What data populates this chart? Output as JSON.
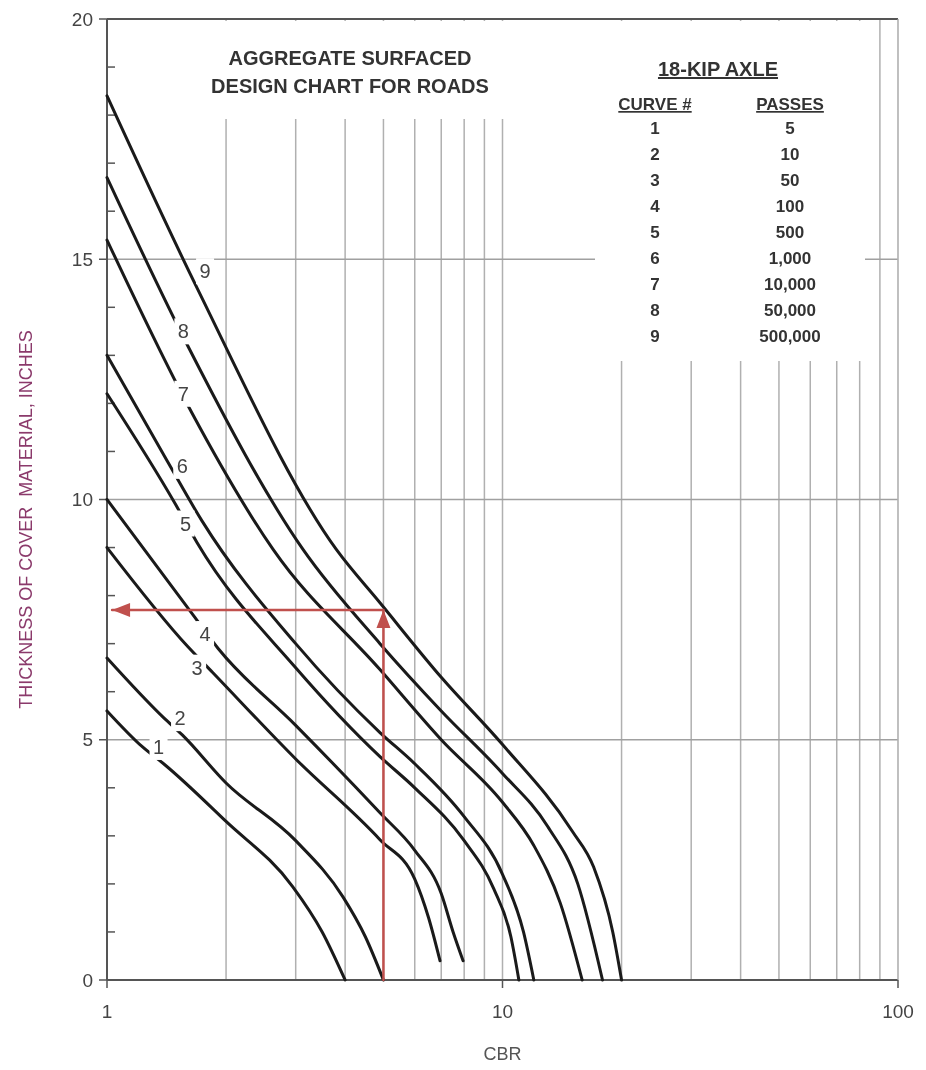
{
  "chart_data": {
    "type": "line",
    "title": "AGGREGATE SURFACED\nDESIGN CHART FOR ROADS",
    "xlabel": "CBR",
    "ylabel": "THICKNESS OF COVER  MATERIAL, INCHES",
    "log": "x",
    "grid": true,
    "marker": "none",
    "line_style": "solid",
    "xlim": [
      1,
      100
    ],
    "ylim": [
      0,
      20
    ],
    "xticks": [
      1,
      {
        "value": 2,
        "label": null
      },
      {
        "value": 3,
        "label": null
      },
      {
        "value": 4,
        "label": null
      },
      {
        "value": 5,
        "label": null
      },
      {
        "value": 6,
        "label": null
      },
      {
        "value": 7,
        "label": null
      },
      {
        "value": 8,
        "label": null
      },
      {
        "value": 9,
        "label": null
      },
      10,
      {
        "value": 20,
        "label": null
      },
      {
        "value": 30,
        "label": null
      },
      {
        "value": 40,
        "label": null
      },
      {
        "value": 50,
        "label": null
      },
      {
        "value": 60,
        "label": null
      },
      {
        "value": 70,
        "label": null
      },
      {
        "value": 80,
        "label": null
      },
      {
        "value": 90,
        "label": null
      },
      100
    ],
    "yticks": [
      0,
      {
        "value": 1,
        "label": null
      },
      {
        "value": 2,
        "label": null
      },
      {
        "value": 3,
        "label": null
      },
      {
        "value": 4,
        "label": null
      },
      5,
      {
        "value": 6,
        "label": null
      },
      {
        "value": 7,
        "label": null
      },
      {
        "value": 8,
        "label": null
      },
      {
        "value": 9,
        "label": null
      },
      10,
      {
        "value": 11,
        "label": null
      },
      {
        "value": 12,
        "label": null
      },
      {
        "value": 13,
        "label": null
      },
      {
        "value": 14,
        "label": null
      },
      15,
      {
        "value": 16,
        "label": null
      },
      {
        "value": 17,
        "label": null
      },
      {
        "value": 18,
        "label": null
      },
      {
        "value": 19,
        "label": null
      },
      20
    ],
    "series": [
      {
        "color": "#1a1a1a",
        "x": [
          1,
          1.23,
          1.4,
          2,
          2.95,
          3.5,
          4
        ],
        "values": [
          5.6,
          4.85,
          4.48,
          3.3,
          1.94,
          1.0,
          0
        ]
      },
      {
        "color": "#1a1a1a",
        "x": [
          1,
          1.39,
          1.55,
          2,
          3,
          3.95,
          4.5,
          5
        ],
        "values": [
          6.7,
          5.46,
          5.1,
          4.1,
          2.9,
          1.73,
          0.9,
          0
        ]
      },
      {
        "color": "#1a1a1a",
        "x": [
          1,
          1.6,
          1.85,
          3,
          4.9,
          6,
          6.5,
          6.95
        ],
        "values": [
          9.0,
          6.94,
          6.4,
          4.6,
          2.92,
          2.1,
          1.3,
          0.4
        ]
      },
      {
        "color": "#1a1a1a",
        "x": [
          1,
          1.65,
          1.91,
          3,
          4.9,
          6,
          7,
          7.5,
          7.95
        ],
        "values": [
          10.0,
          7.6,
          6.9,
          5.3,
          3.48,
          2.7,
          1.8,
          1.0,
          0.4
        ]
      },
      {
        "color": "#1a1a1a",
        "x": [
          1,
          1.49,
          1.69,
          3,
          4.9,
          6,
          8,
          9.5,
          10.5,
          11
        ],
        "values": [
          12.2,
          9.9,
          9.1,
          6.5,
          4.65,
          4.0,
          2.9,
          1.9,
          0.9,
          0
        ]
      },
      {
        "color": "#1a1a1a",
        "x": [
          1,
          1.42,
          1.74,
          3,
          4.9,
          6,
          8,
          10,
          11.3,
          12
        ],
        "values": [
          13.0,
          10.8,
          9.55,
          7.0,
          5.15,
          4.5,
          3.4,
          2.2,
          1.0,
          0
        ]
      },
      {
        "color": "#1a1a1a",
        "x": [
          1,
          1.64,
          2.63,
          4.9,
          7,
          10,
          12,
          14,
          15.9
        ],
        "values": [
          15.4,
          11.8,
          8.96,
          6.46,
          5.0,
          3.7,
          2.8,
          1.6,
          0
        ]
      },
      {
        "color": "#1a1a1a",
        "x": [
          1,
          1.6,
          3.13,
          4.9,
          7,
          10,
          13,
          15.5,
          17.9
        ],
        "values": [
          16.7,
          13.2,
          8.96,
          7.0,
          5.6,
          4.3,
          3.2,
          2.0,
          0
        ]
      },
      {
        "color": "#1a1a1a",
        "x": [
          1,
          1.69,
          3.8,
          4.9,
          7,
          10,
          15,
          17,
          19,
          20
        ],
        "values": [
          18.4,
          14.4,
          8.96,
          7.85,
          6.3,
          4.9,
          3.1,
          2.35,
          1.0,
          0
        ]
      },
      {
        "color": "#c0504d",
        "x": [
          5,
          5,
          1.03
        ],
        "values": [
          0,
          7.7,
          7.7
        ]
      }
    ],
    "annotations": [
      "18-KIP AXLE",
      "CURVE #",
      "PASSES",
      "1",
      "5",
      "2",
      "10",
      "3",
      "50",
      "4",
      "100",
      "5",
      "500",
      "6",
      "1,000",
      "7",
      "10,000",
      "8",
      "50,000",
      "9",
      "500,000",
      {
        "text": "1",
        "x": 1.35,
        "y": 4.85
      },
      {
        "text": "2",
        "x": 1.53,
        "y": 5.45
      },
      {
        "text": "3",
        "x": 1.69,
        "y": 6.5
      },
      {
        "text": "4",
        "x": 1.77,
        "y": 7.2
      },
      {
        "text": "5",
        "x": 1.58,
        "y": 9.5
      },
      {
        "text": "6",
        "x": 1.55,
        "y": 10.7
      },
      {
        "text": "7",
        "x": 1.56,
        "y": 12.2
      },
      {
        "text": "8",
        "x": 1.56,
        "y": 13.5
      },
      {
        "text": "9",
        "x": 1.77,
        "y": 14.75
      }
    ]
  }
}
